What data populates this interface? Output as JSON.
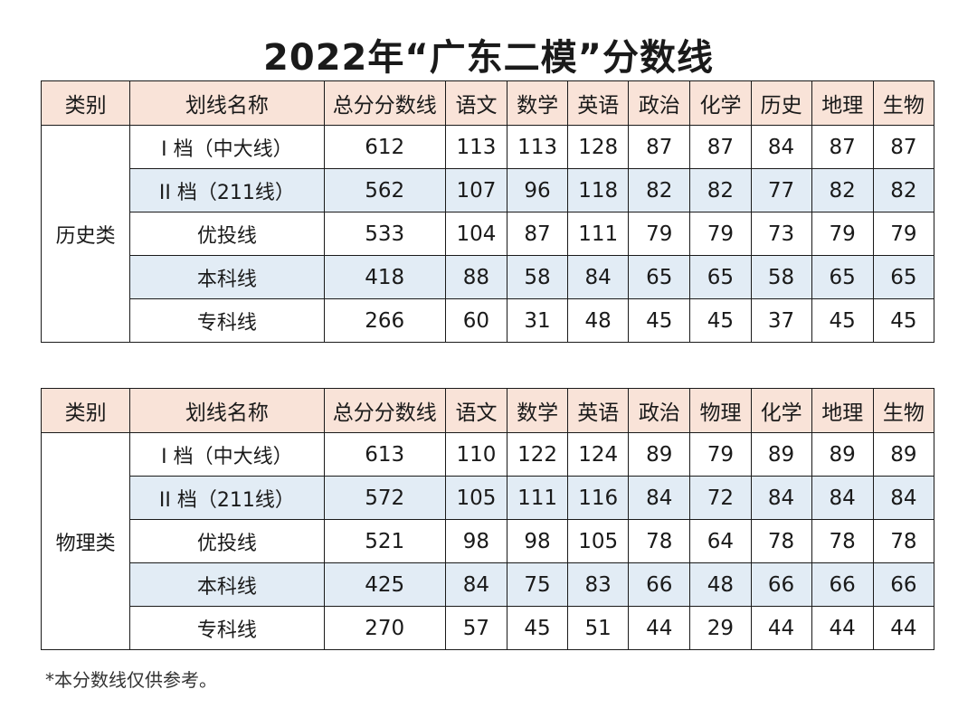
{
  "title": "2022年“广东二模”分数线",
  "tables": [
    {
      "headers": [
        "类别",
        "划线名称",
        "总分分数线",
        "语文",
        "数学",
        "英语",
        "政治",
        "化学",
        "历史",
        "地理",
        "生物"
      ],
      "category": "历史类",
      "rows": [
        {
          "name": "I 档（中大线）",
          "values": [
            "612",
            "113",
            "113",
            "128",
            "87",
            "87",
            "84",
            "87",
            "87"
          ]
        },
        {
          "name": "II 档（211线）",
          "values": [
            "562",
            "107",
            "96",
            "118",
            "82",
            "82",
            "77",
            "82",
            "82"
          ]
        },
        {
          "name": "优投线",
          "values": [
            "533",
            "104",
            "87",
            "111",
            "79",
            "79",
            "73",
            "79",
            "79"
          ]
        },
        {
          "name": "本科线",
          "values": [
            "418",
            "88",
            "58",
            "84",
            "65",
            "65",
            "58",
            "65",
            "65"
          ]
        },
        {
          "name": "专科线",
          "values": [
            "266",
            "60",
            "31",
            "48",
            "45",
            "45",
            "37",
            "45",
            "45"
          ]
        }
      ]
    },
    {
      "headers": [
        "类别",
        "划线名称",
        "总分分数线",
        "语文",
        "数学",
        "英语",
        "政治",
        "物理",
        "化学",
        "地理",
        "生物"
      ],
      "category": "物理类",
      "rows": [
        {
          "name": "I 档（中大线）",
          "values": [
            "613",
            "110",
            "122",
            "124",
            "89",
            "79",
            "89",
            "89",
            "89"
          ]
        },
        {
          "name": "II 档（211线）",
          "values": [
            "572",
            "105",
            "111",
            "116",
            "84",
            "72",
            "84",
            "84",
            "84"
          ]
        },
        {
          "name": "优投线",
          "values": [
            "521",
            "98",
            "98",
            "105",
            "78",
            "64",
            "78",
            "78",
            "78"
          ]
        },
        {
          "name": "本科线",
          "values": [
            "425",
            "84",
            "75",
            "83",
            "66",
            "48",
            "66",
            "66",
            "66"
          ]
        },
        {
          "name": "专科线",
          "values": [
            "270",
            "57",
            "45",
            "51",
            "44",
            "29",
            "44",
            "44",
            "44"
          ]
        }
      ]
    }
  ],
  "note": "*本分数线仅供参考。",
  "colors": {
    "header_bg": "#f9e3d8",
    "shaded_row_bg": "#e2ecf5",
    "border": "#1a1a1a"
  }
}
